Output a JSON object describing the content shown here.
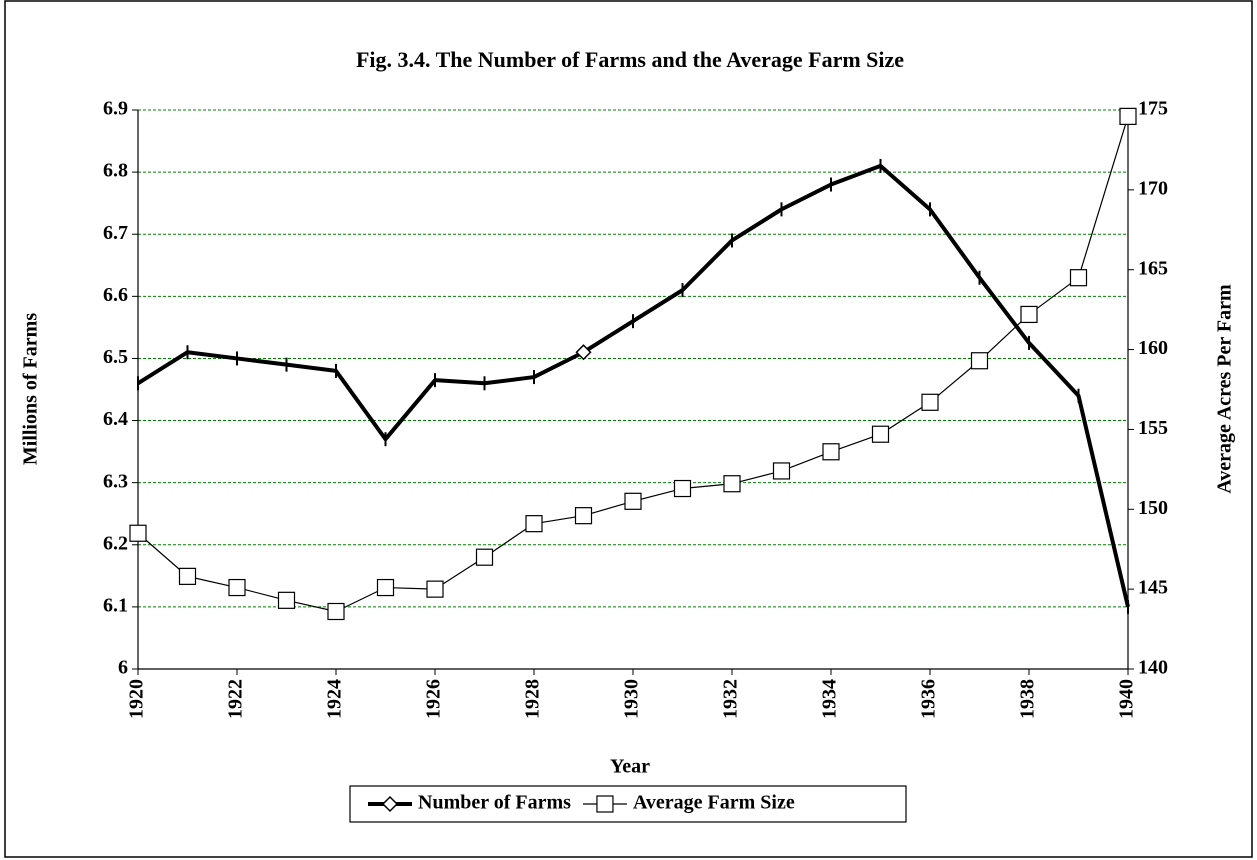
{
  "chart_data": {
    "type": "line",
    "title": "Fig. 3.4. The Number of Farms and the Average Farm Size",
    "xlabel": "Year",
    "ylabel": "Millions of Farms",
    "y2label": "Average Acres Per Farm",
    "x": [
      1920,
      1921,
      1922,
      1923,
      1924,
      1925,
      1926,
      1927,
      1928,
      1929,
      1930,
      1931,
      1932,
      1933,
      1934,
      1935,
      1936,
      1937,
      1938,
      1939,
      1940
    ],
    "series": [
      {
        "name": "Number of Farms",
        "color": "#000000",
        "marker": "diamond",
        "axis": "y",
        "values": [
          6.46,
          6.51,
          6.5,
          6.49,
          6.48,
          6.37,
          6.465,
          6.46,
          6.47,
          6.51,
          6.56,
          6.61,
          6.69,
          6.74,
          6.78,
          6.81,
          6.74,
          6.63,
          6.525,
          6.44,
          6.1
        ]
      },
      {
        "name": "Average Farm Size",
        "color": "#000000",
        "marker": "square",
        "axis": "y2",
        "values": [
          148.5,
          145.8,
          145.1,
          144.3,
          143.6,
          145.1,
          145.0,
          147.0,
          149.1,
          149.6,
          150.5,
          151.3,
          151.6,
          152.4,
          153.6,
          154.7,
          156.7,
          159.3,
          162.2,
          164.5,
          174.6
        ]
      }
    ],
    "xlim": [
      1920,
      1940
    ],
    "xticks": [
      1920,
      1922,
      1924,
      1926,
      1928,
      1930,
      1932,
      1934,
      1936,
      1938,
      1940
    ],
    "ylim": [
      6,
      6.9
    ],
    "yticks": [
      6,
      6.1,
      6.2,
      6.3,
      6.4,
      6.5,
      6.6,
      6.7,
      6.8,
      6.9
    ],
    "y2lim": [
      140,
      175
    ],
    "y2ticks": [
      140,
      145,
      150,
      155,
      160,
      165,
      170,
      175
    ],
    "grid": true,
    "grid_color": "#008000"
  }
}
